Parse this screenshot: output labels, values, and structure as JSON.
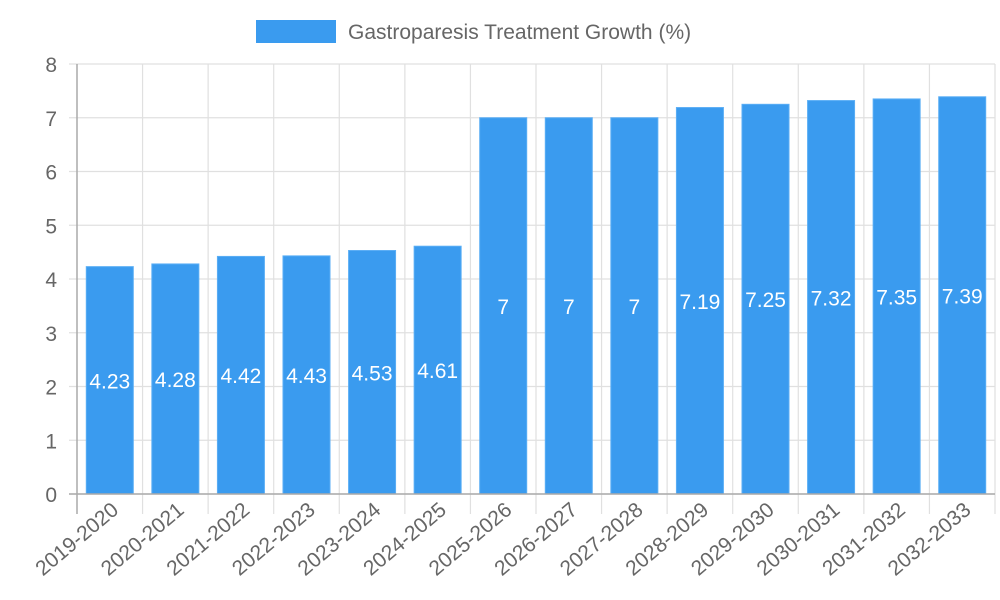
{
  "legend": {
    "label": "Gastroparesis Treatment Growth (%)",
    "color": "#3a9bef"
  },
  "colors": {
    "bar": "#3a9bef",
    "bar_border": "#5aaef5",
    "grid": "#e0e0e0",
    "axis": "#aaaaaa",
    "tick_text": "#666666",
    "value_label": "#ffffff"
  },
  "chart_data": {
    "type": "bar",
    "title": "",
    "xlabel": "",
    "ylabel": "",
    "ylim": [
      0,
      8
    ],
    "yticks": [
      0,
      1,
      2,
      3,
      4,
      5,
      6,
      7,
      8
    ],
    "grid": true,
    "legend_position": "top",
    "categories": [
      "2019-2020",
      "2020-2021",
      "2021-2022",
      "2022-2023",
      "2023-2024",
      "2024-2025",
      "2025-2026",
      "2026-2027",
      "2027-2028",
      "2028-2029",
      "2029-2030",
      "2030-2031",
      "2031-2032",
      "2032-2033"
    ],
    "series": [
      {
        "name": "Gastroparesis Treatment Growth (%)",
        "values": [
          4.23,
          4.28,
          4.42,
          4.43,
          4.53,
          4.61,
          7,
          7,
          7,
          7.19,
          7.25,
          7.32,
          7.35,
          7.39
        ]
      }
    ]
  }
}
